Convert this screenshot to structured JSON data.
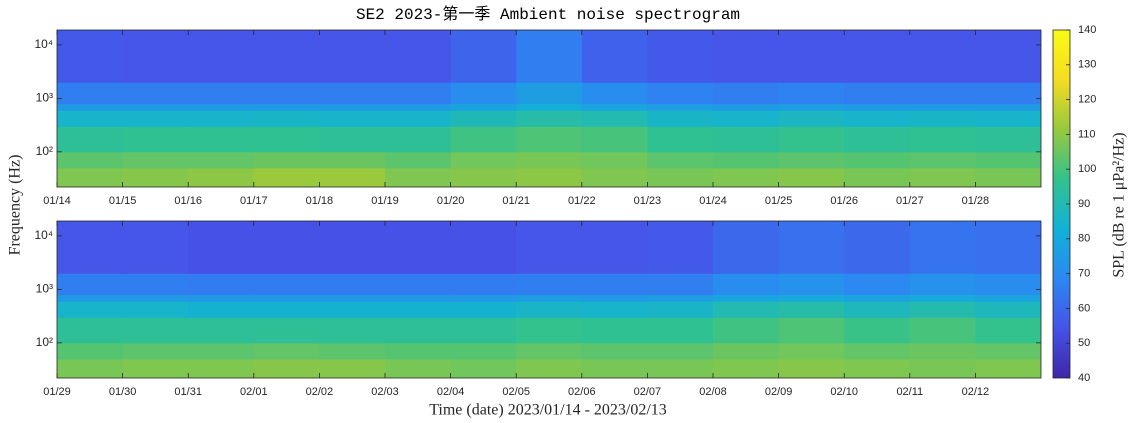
{
  "title": "SE2 2023-第一季 Ambient noise spectrogram",
  "xlabel": "Time (date) 2023/01/14 - 2023/02/13",
  "ylabel": "Frequency (Hz)",
  "colorbar": {
    "label": "SPL (dB re 1 μPa²/Hz)",
    "clim": [
      40,
      140
    ],
    "ticks": [
      40,
      50,
      60,
      70,
      80,
      90,
      100,
      110,
      120,
      130,
      140
    ],
    "colormap": [
      "#3e26a8",
      "#4653e8",
      "#2c88f2",
      "#12b1d6",
      "#33c28c",
      "#97c83e",
      "#f4dc22",
      "#f9fb14"
    ]
  },
  "chart_data": [
    {
      "type": "heatmap",
      "log_y": true,
      "xlim": [
        0,
        15
      ],
      "ylim": [
        22,
        19000
      ],
      "xticks": [
        {
          "value": 0,
          "label": "01/14"
        },
        {
          "value": 1,
          "label": "01/15"
        },
        {
          "value": 2,
          "label": "01/16"
        },
        {
          "value": 3,
          "label": "01/17"
        },
        {
          "value": 4,
          "label": "01/18"
        },
        {
          "value": 5,
          "label": "01/19"
        },
        {
          "value": 6,
          "label": "01/20"
        },
        {
          "value": 7,
          "label": "01/21"
        },
        {
          "value": 8,
          "label": "01/22"
        },
        {
          "value": 9,
          "label": "01/23"
        },
        {
          "value": 10,
          "label": "01/24"
        },
        {
          "value": 11,
          "label": "01/25"
        },
        {
          "value": 12,
          "label": "01/26"
        },
        {
          "value": 13,
          "label": "01/27"
        },
        {
          "value": 14,
          "label": "01/28"
        }
      ],
      "yticks": [
        {
          "value": 100,
          "label": "10²"
        },
        {
          "value": 1000,
          "label": "10³"
        },
        {
          "value": 10000,
          "label": "10⁴"
        }
      ],
      "y_bins": [
        22,
        50,
        100,
        300,
        600,
        800,
        2000,
        19000
      ],
      "z": [
        [
          108,
          109,
          110,
          112,
          112,
          108,
          109,
          110,
          108,
          107,
          108,
          109,
          107,
          108,
          107
        ],
        [
          103,
          104,
          104,
          105,
          105,
          103,
          106,
          107,
          106,
          103,
          102,
          103,
          102,
          103,
          102
        ],
        [
          95,
          96,
          96,
          96,
          95,
          95,
          99,
          101,
          100,
          96,
          95,
          97,
          95,
          96,
          95
        ],
        [
          85,
          85,
          85,
          86,
          85,
          85,
          89,
          92,
          90,
          86,
          85,
          87,
          85,
          86,
          85
        ],
        [
          75,
          75,
          75,
          75,
          75,
          75,
          78,
          82,
          78,
          76,
          75,
          76,
          75,
          75,
          75
        ],
        [
          66,
          66,
          66,
          66,
          66,
          66,
          70,
          76,
          70,
          67,
          66,
          67,
          66,
          66,
          66
        ],
        [
          56,
          55,
          55,
          55,
          55,
          55,
          59,
          66,
          58,
          56,
          55,
          55,
          55,
          55,
          55
        ]
      ]
    },
    {
      "type": "heatmap",
      "log_y": true,
      "xlim": [
        0,
        15
      ],
      "ylim": [
        22,
        19000
      ],
      "xticks": [
        {
          "value": 0,
          "label": "01/29"
        },
        {
          "value": 1,
          "label": "01/30"
        },
        {
          "value": 2,
          "label": "01/31"
        },
        {
          "value": 3,
          "label": "02/01"
        },
        {
          "value": 4,
          "label": "02/02"
        },
        {
          "value": 5,
          "label": "02/03"
        },
        {
          "value": 6,
          "label": "02/04"
        },
        {
          "value": 7,
          "label": "02/05"
        },
        {
          "value": 8,
          "label": "02/06"
        },
        {
          "value": 9,
          "label": "02/07"
        },
        {
          "value": 10,
          "label": "02/08"
        },
        {
          "value": 11,
          "label": "02/09"
        },
        {
          "value": 12,
          "label": "02/10"
        },
        {
          "value": 13,
          "label": "02/11"
        },
        {
          "value": 14,
          "label": "02/12"
        }
      ],
      "yticks": [
        {
          "value": 100,
          "label": "10²"
        },
        {
          "value": 1000,
          "label": "10³"
        },
        {
          "value": 10000,
          "label": "10⁴"
        }
      ],
      "y_bins": [
        22,
        50,
        100,
        300,
        600,
        800,
        2000,
        19000
      ],
      "z": [
        [
          107,
          108,
          108,
          109,
          109,
          107,
          106,
          108,
          107,
          107,
          108,
          109,
          108,
          107,
          108
        ],
        [
          102,
          103,
          103,
          104,
          103,
          102,
          102,
          104,
          103,
          103,
          105,
          106,
          104,
          105,
          104
        ],
        [
          95,
          95,
          95,
          95,
          95,
          95,
          95,
          97,
          96,
          96,
          99,
          101,
          98,
          100,
          97
        ],
        [
          85,
          85,
          84,
          84,
          84,
          84,
          84,
          86,
          85,
          86,
          90,
          92,
          88,
          91,
          88
        ],
        [
          75,
          75,
          74,
          74,
          74,
          74,
          74,
          76,
          75,
          76,
          79,
          80,
          78,
          80,
          78
        ],
        [
          66,
          66,
          65,
          65,
          65,
          65,
          65,
          66,
          66,
          66,
          70,
          72,
          69,
          72,
          70
        ],
        [
          55,
          55,
          54,
          54,
          54,
          54,
          54,
          55,
          55,
          56,
          60,
          62,
          60,
          63,
          62
        ]
      ]
    }
  ]
}
